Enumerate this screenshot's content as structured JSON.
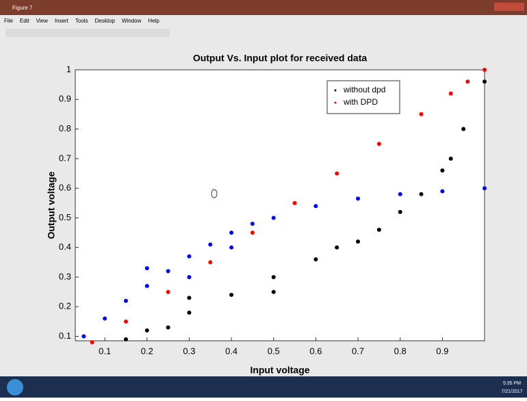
{
  "window": {
    "title": "Figure 7",
    "menu": [
      "File",
      "Edit",
      "View",
      "Insert",
      "Tools",
      "Desktop",
      "Window",
      "Help"
    ]
  },
  "chart_data": {
    "type": "scatter",
    "title": "Output Vs. Input plot for received data",
    "xlabel": "Input voltage",
    "ylabel": "Output voltage",
    "xlim": [
      0.03,
      1.0
    ],
    "ylim": [
      0.085,
      1.0
    ],
    "xticks": [
      0.1,
      0.2,
      0.3,
      0.4,
      0.5,
      0.6,
      0.7,
      0.8,
      0.9
    ],
    "yticks": [
      0.1,
      0.2,
      0.3,
      0.4,
      0.5,
      0.6,
      0.7,
      0.8,
      0.9,
      1
    ],
    "legend": "upper right",
    "series": [
      {
        "name": "without dpd",
        "color": "#000000",
        "x": [
          0.15,
          0.2,
          0.3,
          0.4,
          0.5,
          0.6,
          0.7,
          0.75,
          0.8,
          0.85,
          0.9,
          0.92,
          0.95,
          1.0,
          0.3,
          0.5,
          0.25,
          0.65
        ],
        "y": [
          0.09,
          0.12,
          0.18,
          0.24,
          0.3,
          0.36,
          0.42,
          0.46,
          0.52,
          0.58,
          0.66,
          0.7,
          0.8,
          0.96,
          0.23,
          0.25,
          0.13,
          0.4
        ]
      },
      {
        "name": "with DPD",
        "color": "#ff0000",
        "x": [
          0.07,
          0.15,
          0.25,
          0.35,
          0.45,
          0.55,
          0.65,
          0.75,
          0.85,
          0.92,
          0.96,
          1.0
        ],
        "y": [
          0.08,
          0.15,
          0.25,
          0.35,
          0.45,
          0.55,
          0.65,
          0.75,
          0.85,
          0.92,
          0.96,
          1.0
        ]
      },
      {
        "name": null,
        "color": "#0000ff",
        "x": [
          0.05,
          0.1,
          0.15,
          0.2,
          0.25,
          0.3,
          0.35,
          0.4,
          0.45,
          0.5,
          0.6,
          0.7,
          0.8,
          0.9,
          1.0,
          0.2,
          0.3,
          0.4
        ],
        "y": [
          0.1,
          0.16,
          0.22,
          0.27,
          0.32,
          0.37,
          0.41,
          0.45,
          0.48,
          0.5,
          0.54,
          0.565,
          0.58,
          0.59,
          0.6,
          0.33,
          0.3,
          0.4
        ]
      }
    ]
  },
  "taskbar": {
    "time": "5:35 PM",
    "date": "7/21/2017"
  }
}
